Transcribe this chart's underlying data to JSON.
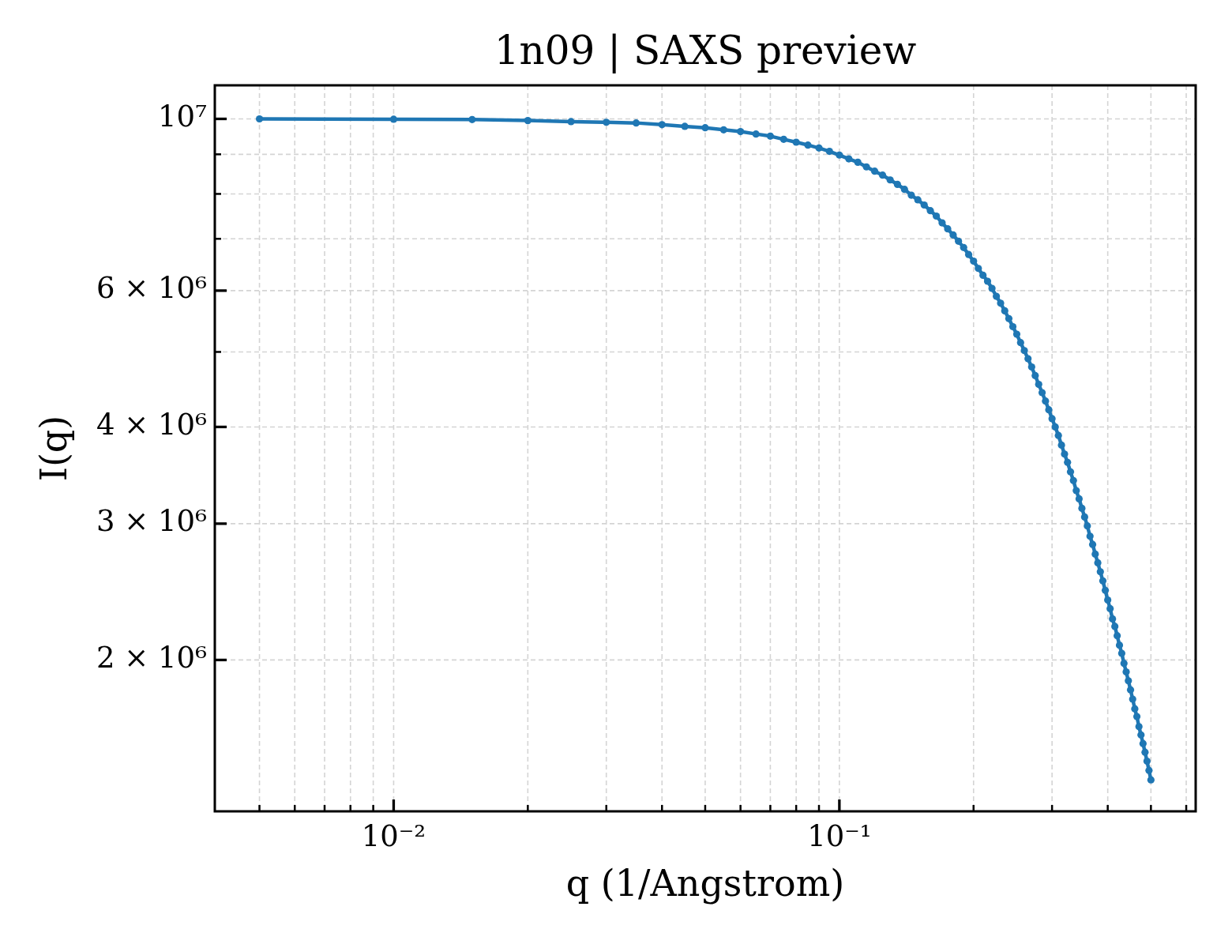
{
  "chart_data": {
    "type": "line",
    "title": "1n09 | SAXS preview",
    "xlabel": "q (1/Angstrom)",
    "ylabel": "I(q)",
    "log": "xy",
    "grid": true,
    "marker": "circle",
    "line_style": "solid",
    "xlim": [
      0.00397,
      0.63
    ],
    "ylim": [
      1275000,
      11050000
    ],
    "xticks": [
      {
        "value": 0.005,
        "label": null
      },
      {
        "value": 0.006,
        "label": null
      },
      {
        "value": 0.007,
        "label": null
      },
      {
        "value": 0.008,
        "label": null
      },
      {
        "value": 0.009,
        "label": null
      },
      {
        "value": 0.01,
        "label": "10⁻²"
      },
      {
        "value": 0.02,
        "label": null
      },
      {
        "value": 0.03,
        "label": null
      },
      {
        "value": 0.04,
        "label": null
      },
      {
        "value": 0.05,
        "label": null
      },
      {
        "value": 0.06,
        "label": null
      },
      {
        "value": 0.07,
        "label": null
      },
      {
        "value": 0.08,
        "label": null
      },
      {
        "value": 0.09,
        "label": null
      },
      {
        "value": 0.1,
        "label": "10⁻¹"
      },
      {
        "value": 0.2,
        "label": null
      },
      {
        "value": 0.3,
        "label": null
      },
      {
        "value": 0.4,
        "label": null
      },
      {
        "value": 0.5,
        "label": null
      },
      {
        "value": 0.6,
        "label": null
      }
    ],
    "yticks": [
      {
        "value": 2000000,
        "label": "2 × 10⁶"
      },
      {
        "value": 3000000,
        "label": "3 × 10⁶"
      },
      {
        "value": 4000000,
        "label": "4 × 10⁶"
      },
      {
        "value": 5000000,
        "label": null
      },
      {
        "value": 6000000,
        "label": "6 × 10⁶"
      },
      {
        "value": 7000000,
        "label": null
      },
      {
        "value": 8000000,
        "label": null
      },
      {
        "value": 9000000,
        "label": null
      },
      {
        "value": 10000000,
        "label": "10⁷"
      }
    ],
    "x": [
      0.005,
      0.01,
      0.015,
      0.02,
      0.025,
      0.03,
      0.035,
      0.04,
      0.045,
      0.05,
      0.055,
      0.06,
      0.065,
      0.07,
      0.075,
      0.08,
      0.085,
      0.09,
      0.095,
      0.1,
      0.105,
      0.11,
      0.115,
      0.12,
      0.125,
      0.13,
      0.135,
      0.14,
      0.145,
      0.15,
      0.155,
      0.16,
      0.165,
      0.17,
      0.175,
      0.18,
      0.185,
      0.19,
      0.195,
      0.2,
      0.205,
      0.21,
      0.215,
      0.22,
      0.225,
      0.23,
      0.235,
      0.24,
      0.245,
      0.25,
      0.255,
      0.26,
      0.265,
      0.27,
      0.275,
      0.28,
      0.285,
      0.29,
      0.295,
      0.3,
      0.305,
      0.31,
      0.315,
      0.32,
      0.325,
      0.33,
      0.335,
      0.34,
      0.345,
      0.35,
      0.355,
      0.36,
      0.365,
      0.37,
      0.375,
      0.38,
      0.385,
      0.39,
      0.395,
      0.4,
      0.405,
      0.41,
      0.415,
      0.42,
      0.425,
      0.43,
      0.435,
      0.44,
      0.445,
      0.45,
      0.455,
      0.46,
      0.465,
      0.47,
      0.475,
      0.48,
      0.485,
      0.49,
      0.495,
      0.5
    ],
    "series": [
      {
        "color": "#1f77b4",
        "values": [
          10000000,
          9990000,
          9980000,
          9950000,
          9920000,
          9900000,
          9880000,
          9830000,
          9780000,
          9740000,
          9680000,
          9630000,
          9560000,
          9500000,
          9410000,
          9330000,
          9250000,
          9170000,
          9080000,
          8980000,
          8880000,
          8790000,
          8670000,
          8560000,
          8460000,
          8340000,
          8230000,
          8110000,
          7970000,
          7860000,
          7740000,
          7610000,
          7490000,
          7340000,
          7210000,
          7080000,
          6950000,
          6820000,
          6680000,
          6550000,
          6410000,
          6280000,
          6170000,
          6040000,
          5900000,
          5780000,
          5650000,
          5520000,
          5390000,
          5270000,
          5140000,
          5020000,
          4900000,
          4780000,
          4660000,
          4540000,
          4430000,
          4320000,
          4210000,
          4100000,
          4000000,
          3900000,
          3790000,
          3690000,
          3600000,
          3500000,
          3410000,
          3310000,
          3230000,
          3140000,
          3060000,
          2980000,
          2890000,
          2820000,
          2740000,
          2670000,
          2600000,
          2530000,
          2460000,
          2390000,
          2330000,
          2260000,
          2210000,
          2150000,
          2090000,
          2040000,
          1980000,
          1930000,
          1880000,
          1830000,
          1780000,
          1730000,
          1690000,
          1640000,
          1600000,
          1560000,
          1520000,
          1480000,
          1440000,
          1400000
        ]
      }
    ]
  }
}
